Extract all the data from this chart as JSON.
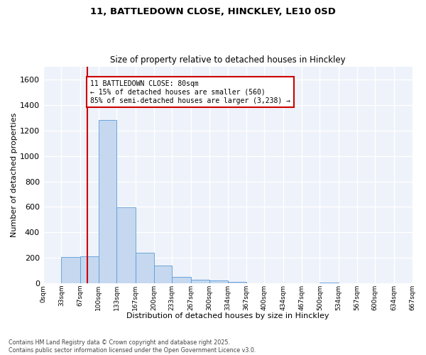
{
  "title": "11, BATTLEDOWN CLOSE, HINCKLEY, LE10 0SD",
  "subtitle": "Size of property relative to detached houses in Hinckley",
  "xlabel": "Distribution of detached houses by size in Hinckley",
  "ylabel": "Number of detached properties",
  "bar_color": "#c5d8f0",
  "bar_edge_color": "#5b9bd5",
  "background_color": "#eef2fa",
  "grid_color": "#ffffff",
  "bins": [
    0,
    33,
    67,
    100,
    133,
    167,
    200,
    233,
    267,
    300,
    334,
    367,
    400,
    434,
    467,
    500,
    534,
    567,
    600,
    634,
    667
  ],
  "bar_heights": [
    5,
    210,
    215,
    1280,
    595,
    240,
    140,
    50,
    30,
    25,
    15,
    3,
    2,
    0,
    0,
    10,
    0,
    0,
    0,
    0
  ],
  "xlim": [
    0,
    667
  ],
  "ylim": [
    0,
    1700
  ],
  "yticks": [
    0,
    200,
    400,
    600,
    800,
    1000,
    1200,
    1400,
    1600
  ],
  "property_line_x": 80,
  "property_line_color": "#cc0000",
  "annotation_text": "11 BATTLEDOWN CLOSE: 80sqm\n← 15% of detached houses are smaller (560)\n85% of semi-detached houses are larger (3,238) →",
  "annotation_box_color": "#ffffff",
  "annotation_box_edge": "#cc0000",
  "footer_line1": "Contains HM Land Registry data © Crown copyright and database right 2025.",
  "footer_line2": "Contains public sector information licensed under the Open Government Licence v3.0.",
  "tick_labels": [
    "0sqm",
    "33sqm",
    "67sqm",
    "100sqm",
    "133sqm",
    "167sqm",
    "200sqm",
    "233sqm",
    "267sqm",
    "300sqm",
    "334sqm",
    "367sqm",
    "400sqm",
    "434sqm",
    "467sqm",
    "500sqm",
    "534sqm",
    "567sqm",
    "600sqm",
    "634sqm",
    "667sqm"
  ]
}
